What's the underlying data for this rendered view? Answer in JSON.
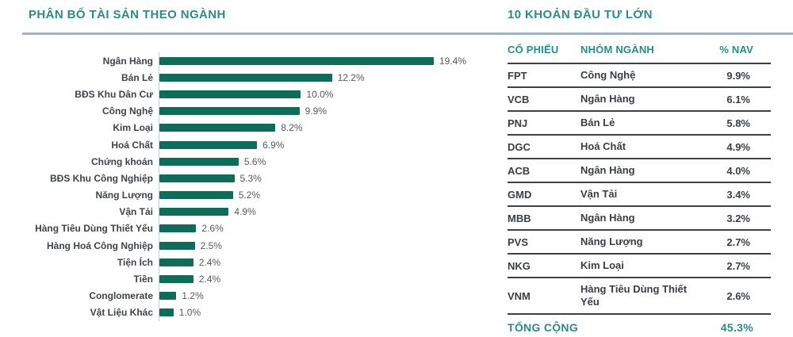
{
  "page": {
    "left_title": "PHÂN BỐ TÀI SẢN THEO NGÀNH",
    "right_title": "10 KHOẢN ĐẦU TƯ LỚN"
  },
  "chart_data": [
    {
      "type": "bar",
      "orientation": "horizontal",
      "title": "PHÂN BỐ TÀI SẢN THEO NGÀNH",
      "categories": [
        "Ngân Hàng",
        "Bán Lẻ",
        "BĐS Khu Dân Cư",
        "Công Nghệ",
        "Kim Loại",
        "Hoá Chất",
        "Chứng khoán",
        "BĐS Khu Công Nghiệp",
        "Năng Lượng",
        "Vận Tải",
        "Hàng Tiêu Dùng Thiết Yếu",
        "Hàng Hoá Công Nghiệp",
        "Tiện Ích",
        "Tiền",
        "Conglomerate",
        "Vật Liệu Khác"
      ],
      "values": [
        19.4,
        12.2,
        10.0,
        9.9,
        8.2,
        6.9,
        5.6,
        5.3,
        5.2,
        4.9,
        2.6,
        2.5,
        2.4,
        2.4,
        1.2,
        1.0
      ],
      "value_suffix": "%",
      "xlim": [
        0,
        19.4
      ],
      "grid": false,
      "data_labels": true,
      "legend": "none"
    },
    {
      "type": "table",
      "title": "10 KHOẢN ĐẦU TƯ LỚN",
      "columns": [
        "CỔ PHIẾU",
        "NHÓM NGÀNH",
        "% NAV"
      ],
      "rows": [
        [
          "FPT",
          "Công Nghệ",
          "9.9%"
        ],
        [
          "VCB",
          "Ngân Hàng",
          "6.1%"
        ],
        [
          "PNJ",
          "Bán Lẻ",
          "5.8%"
        ],
        [
          "DGC",
          "Hoá Chất",
          "4.9%"
        ],
        [
          "ACB",
          "Ngân Hàng",
          "4.0%"
        ],
        [
          "GMD",
          "Vận Tải",
          "3.4%"
        ],
        [
          "MBB",
          "Ngân Hàng",
          "3.2%"
        ],
        [
          "PVS",
          "Năng Lượng",
          "2.7%"
        ],
        [
          "NKG",
          "Kim Loại",
          "2.7%"
        ],
        [
          "VNM",
          "Hàng Tiêu Dùng Thiết Yếu",
          "2.6%"
        ]
      ],
      "total": {
        "label": "TỔNG CỘNG",
        "value": "45.3%"
      }
    }
  ],
  "colors": {
    "heading_teal": "#2b8b86",
    "bar_green": "#0e6c59",
    "rule_blue": "#95b8c5",
    "row_line": "#3e4144",
    "label_dark": "#3f4347",
    "value_gray": "#55595e"
  }
}
